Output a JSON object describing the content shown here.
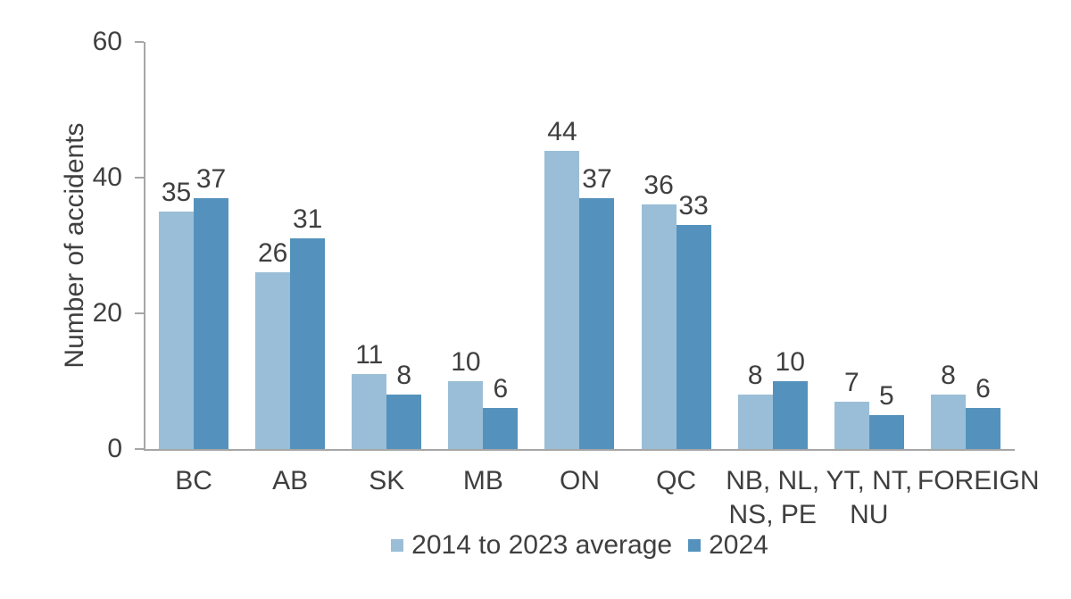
{
  "chart_data": {
    "type": "bar",
    "title": "",
    "xlabel": "",
    "ylabel": "Number of accidents",
    "ylim": [
      0,
      60
    ],
    "yticks": [
      0,
      20,
      40,
      60
    ],
    "grid": false,
    "legend_position": "bottom-center",
    "bar_value_labels": true,
    "categories": [
      "BC",
      "AB",
      "SK",
      "MB",
      "ON",
      "QC",
      "NB, NL,\nNS, PE",
      "YT, NT,\nNU",
      "FOREIGN"
    ],
    "series": [
      {
        "name": "2014 to 2023 average",
        "color": "#9abed7",
        "values": [
          35,
          26,
          11,
          10,
          44,
          36,
          8,
          7,
          8
        ]
      },
      {
        "name": "2024",
        "color": "#5492bd",
        "values": [
          37,
          31,
          8,
          6,
          37,
          33,
          10,
          5,
          6
        ]
      }
    ]
  },
  "colors": {
    "background": "#ffffff",
    "axis": "#a6a6a6",
    "text": "#3f3f3f"
  }
}
